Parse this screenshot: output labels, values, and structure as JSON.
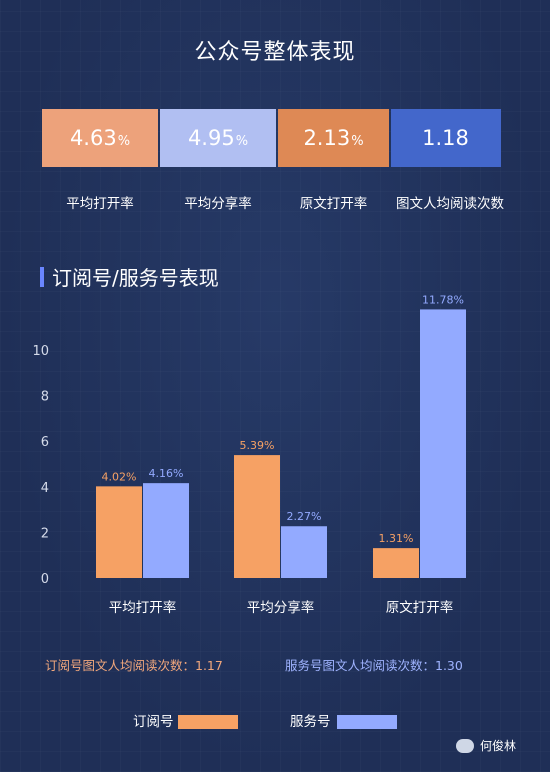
{
  "title": "公众号整体表现",
  "summary": [
    {
      "value": "4.63",
      "unit": "%",
      "label": "平均打开率",
      "color": "#eda27b"
    },
    {
      "value": "4.95",
      "unit": "%",
      "label": "平均分享率",
      "color": "#b1bff2"
    },
    {
      "value": "2.13",
      "unit": "%",
      "label": "原文打开率",
      "color": "#de8955"
    },
    {
      "value": "1.18",
      "unit": "",
      "label": "图文人均阅读次数",
      "color": "#4367cb"
    }
  ],
  "section_title": "订阅号/服务号表现",
  "chart_data": {
    "type": "bar",
    "categories": [
      "平均打开率",
      "平均分享率",
      "原文打开率"
    ],
    "series": [
      {
        "name": "订阅号",
        "values": [
          4.02,
          5.39,
          1.31
        ],
        "labels": [
          "4.02%",
          "5.39%",
          "1.31%"
        ],
        "color": "#f6a164"
      },
      {
        "name": "服务号",
        "values": [
          4.16,
          2.27,
          11.78
        ],
        "labels": [
          "4.16%",
          "2.27%",
          "11.78%"
        ],
        "color": "#93aaff"
      }
    ],
    "yticks": [
      0,
      2,
      4,
      6,
      8,
      10
    ],
    "ylim": [
      0,
      12
    ],
    "grid": false,
    "legend_position": "bottom"
  },
  "stats": {
    "subscription": "订阅号图文人均阅读次数：1.17",
    "service": "服务号图文人均阅读次数：1.30"
  },
  "legend": [
    {
      "label": "订阅号",
      "color": "#f6a164"
    },
    {
      "label": "服务号",
      "color": "#93aaff"
    }
  ],
  "watermark": "何俊林",
  "colors": {
    "background": "#1f2f57",
    "stats_subscription": "#f1a77c",
    "stats_service": "#9fb3ff",
    "tick_label": "#d5dbea"
  }
}
